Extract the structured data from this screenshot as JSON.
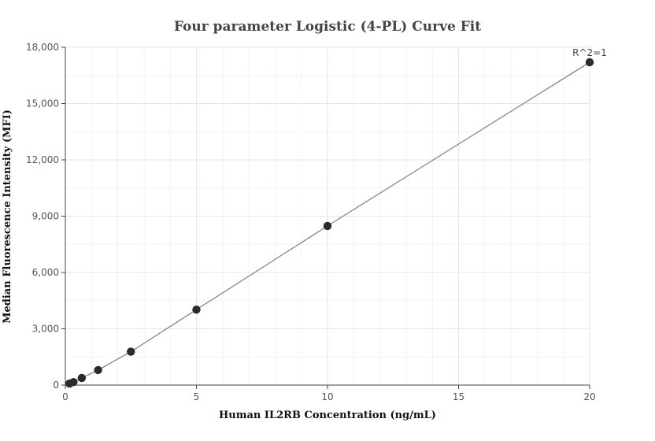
{
  "chart_data": {
    "type": "scatter",
    "title": "Four parameter Logistic (4-PL) Curve Fit",
    "xlabel": "Human IL2RB Concentration (ng/mL)",
    "ylabel": "Median Fluorescence Intensity (MFI)",
    "xlim": [
      0,
      20
    ],
    "ylim": [
      0,
      18000
    ],
    "x_ticks": [
      0,
      5,
      10,
      15,
      20
    ],
    "x_tick_labels": [
      "0",
      "5",
      "10",
      "15",
      "20"
    ],
    "y_ticks": [
      0,
      3000,
      6000,
      9000,
      12000,
      15000,
      18000
    ],
    "y_tick_labels": [
      "0",
      "3,000",
      "6,000",
      "9,000",
      "12,000",
      "15,000",
      "18,000"
    ],
    "grid": true,
    "legend": "none",
    "annotation": "R^2=1",
    "series": [
      {
        "x": [
          0.156,
          0.3125,
          0.625,
          1.25,
          2.5,
          5,
          10,
          20
        ],
        "y": [
          80,
          160,
          380,
          800,
          1780,
          4020,
          8480,
          17200
        ],
        "fit_curve": {
          "x": [
            0,
            0.156,
            0.3125,
            0.625,
            1.25,
            2.5,
            5,
            10,
            20
          ],
          "y": [
            0,
            80,
            160,
            380,
            800,
            1780,
            4020,
            8480,
            17200
          ]
        }
      }
    ],
    "colors": {
      "points": "#2b2b2b",
      "fit_line": "#7f7f7f",
      "grid": "#e6e6e6",
      "axis": "#444444"
    }
  }
}
